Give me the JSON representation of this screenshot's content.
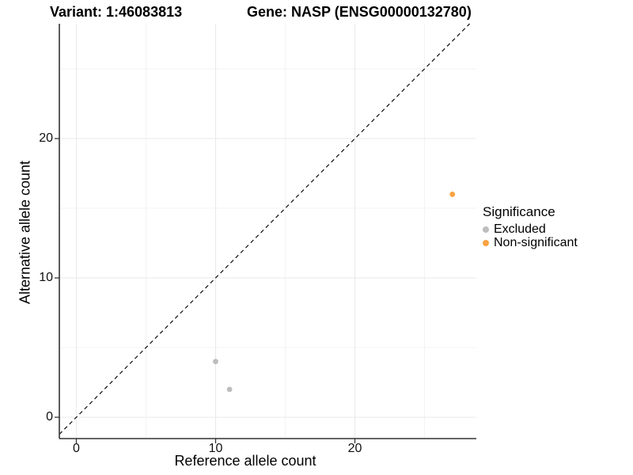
{
  "titles": {
    "variant": "Variant: 1:46083813",
    "gene": "Gene: NASP (ENSG00000132780)"
  },
  "axes": {
    "x_label": "Reference allele count",
    "y_label": "Alternative allele count"
  },
  "legend": {
    "title": "Significance",
    "items": [
      {
        "label": "Excluded",
        "color": "#bdbdbd"
      },
      {
        "label": "Non-significant",
        "color": "#f9a242"
      }
    ]
  },
  "chart_data": {
    "type": "scatter",
    "title_left": "Variant: 1:46083813",
    "title_right": "Gene: NASP (ENSG00000132780)",
    "xlabel": "Reference allele count",
    "ylabel": "Alternative allele count",
    "xlim": [
      -1.22,
      28.72
    ],
    "ylim": [
      -1.53,
      28.24
    ],
    "x_major_ticks": [
      0,
      10,
      20
    ],
    "y_major_ticks": [
      0,
      10,
      20
    ],
    "x_minor_ticks": [
      5,
      15,
      25
    ],
    "y_minor_ticks": [
      5,
      15,
      25
    ],
    "grid": "major and minor, very light gray on white",
    "legend_position": "right",
    "legend_title": "Significance",
    "identity_line": {
      "equation": "y = x",
      "style": "dashed",
      "color": "#1a1a1a"
    },
    "series": [
      {
        "name": "Excluded",
        "color": "#bdbdbd",
        "points": [
          [
            10,
            4
          ],
          [
            11,
            2
          ]
        ]
      },
      {
        "name": "Non-significant",
        "color": "#f9a242",
        "points": [
          [
            27,
            16
          ]
        ]
      }
    ],
    "colors": {
      "major_grid": "#e9e9e9",
      "minor_grid": "#f3f3f3",
      "axis_line": "#333333",
      "tick_mark": "#333333",
      "text": "#000000"
    }
  }
}
